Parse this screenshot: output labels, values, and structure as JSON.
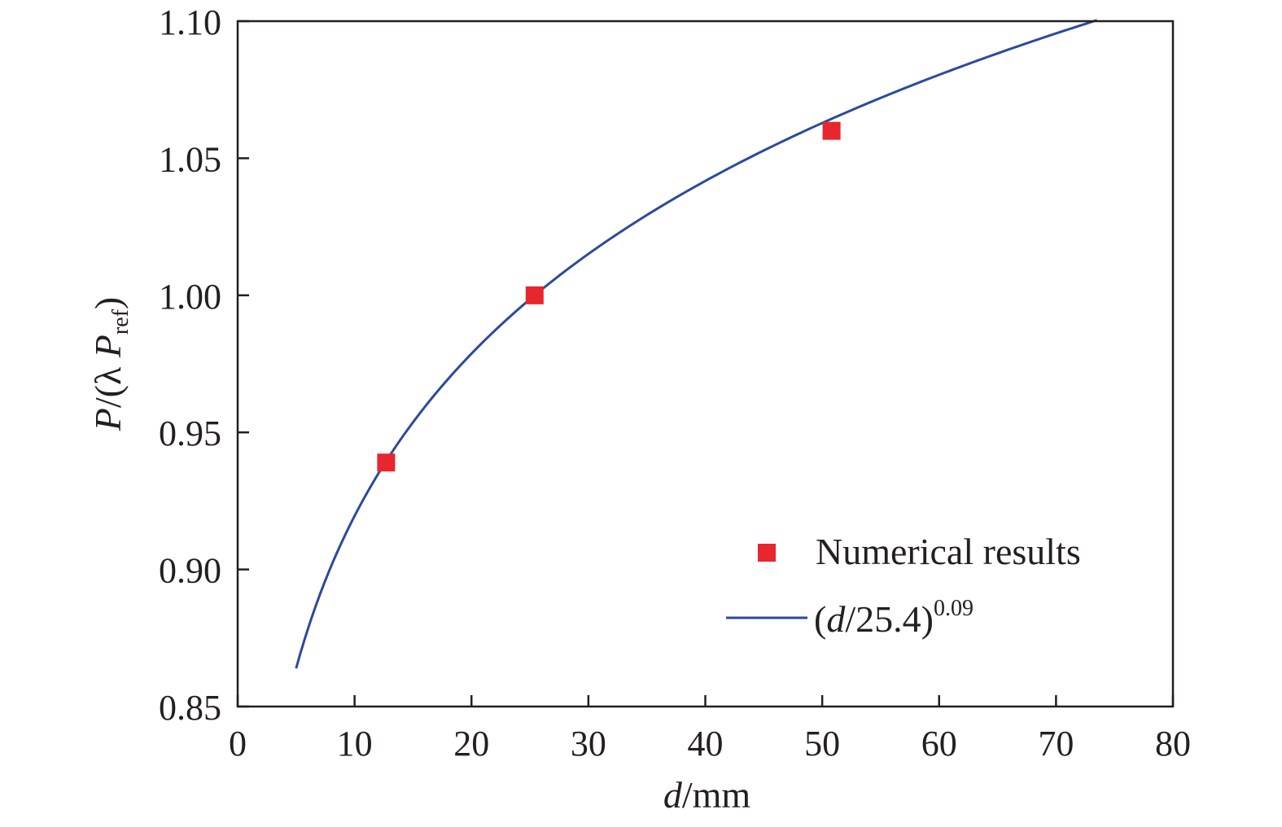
{
  "chart_data": {
    "type": "scatter",
    "xlim": [
      0,
      80
    ],
    "ylim": [
      0.85,
      1.1
    ],
    "xticks": [
      "0",
      "10",
      "20",
      "30",
      "40",
      "50",
      "60",
      "70",
      "80"
    ],
    "yticks": [
      "0.85",
      "0.90",
      "0.95",
      "1.00",
      "1.05",
      "1.10"
    ],
    "xlabel": {
      "var": "d",
      "rest": "/mm"
    },
    "ylabel": {
      "p1": "P",
      "mid": "/(λ ",
      "p2": "P",
      "sub": "ref",
      "close": ")"
    },
    "series": [
      {
        "name": "Numerical results",
        "kind": "scatter",
        "marker": "square",
        "color": "#e8262d",
        "points": [
          {
            "x": 12.7,
            "y": 0.939
          },
          {
            "x": 25.4,
            "y": 1.0
          },
          {
            "x": 50.8,
            "y": 1.06
          }
        ]
      },
      {
        "name": "(d/25.4)^0.09",
        "kind": "line",
        "color": "#2b4a9c",
        "formula": "(d/25.4)^0.09",
        "x_range": [
          5,
          73.5
        ]
      }
    ],
    "legend": {
      "position": "bottom-right",
      "entries": [
        {
          "label": "Numerical results"
        },
        {
          "open": "(",
          "var": "d",
          "rest": "/25.4)",
          "sup": "0.09"
        }
      ]
    },
    "grid": false
  }
}
